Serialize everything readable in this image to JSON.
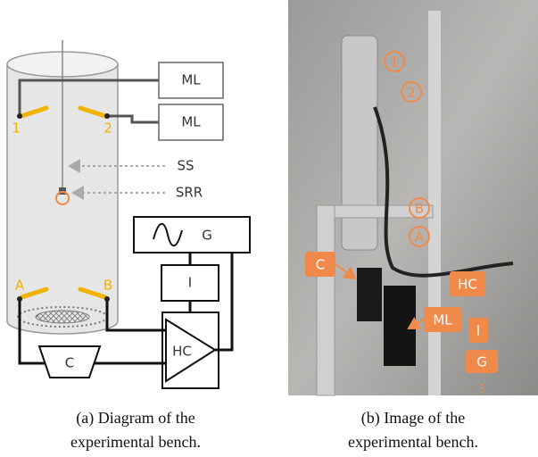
{
  "panel_a": {
    "labels": {
      "ml_top": "ML",
      "ml_bottom": "ML",
      "sensor_1": "1",
      "sensor_2": "2",
      "ss": "SS",
      "srr": "SRR",
      "g": "G",
      "i": "I",
      "sensor_a": "A",
      "sensor_b": "B",
      "c": "C",
      "hc": "HC"
    },
    "caption": [
      "(a)  Diagram of the",
      "experimental bench."
    ]
  },
  "panel_b": {
    "labels": {
      "sensor_1": "1",
      "sensor_2": "2",
      "sensor_b": "B",
      "sensor_a": "A",
      "c": "C",
      "hc": "HC",
      "ml": "ML",
      "i": "I",
      "g": "G"
    },
    "caption": [
      "(b)  Image of the",
      "experimental bench."
    ]
  }
}
